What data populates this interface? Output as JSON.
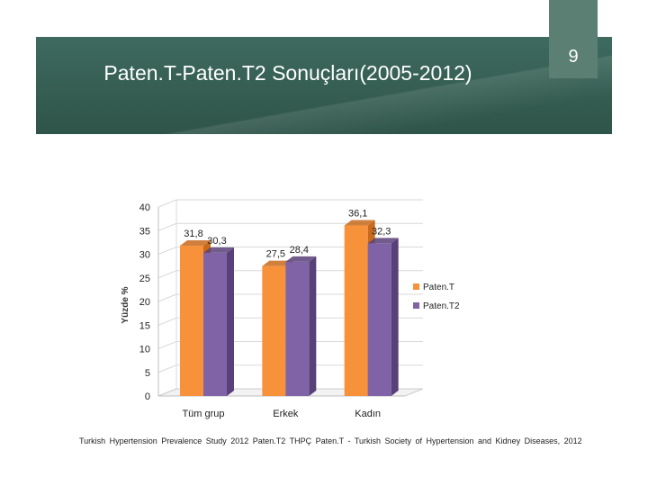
{
  "slide": {
    "title": "Paten.T-Paten.T2 Sonuçları(2005-2012)",
    "page_number": "9",
    "footnote": "Turkish Hypertension Prevalence Study 2012 Paten.T2 THPÇ Paten.T - Turkish Society of Hypertension and Kidney Diseases, 2012"
  },
  "colors": {
    "banner": "#345a4f",
    "page_box": "#5b7f72",
    "series1": "#f7923a",
    "series1_dark": "#c76a1d",
    "series2": "#7f63a6",
    "series2_dark": "#584078"
  },
  "chart_data": {
    "type": "bar",
    "categories": [
      "Tüm grup",
      "Erkek",
      "Kadın"
    ],
    "series": [
      {
        "name": "Paten.T",
        "values": [
          31.8,
          27.5,
          36.1
        ],
        "labels": [
          "31,8",
          "27,5",
          "36,1"
        ]
      },
      {
        "name": "Paten.T2",
        "values": [
          30.3,
          28.4,
          32.3
        ],
        "labels": [
          "30,3",
          "28,4",
          "32,3"
        ]
      }
    ],
    "title": "",
    "xlabel": "",
    "ylabel": "Yüzde %",
    "ylim": [
      0,
      40
    ],
    "yticks": [
      "0",
      "5",
      "10",
      "15",
      "20",
      "25",
      "30",
      "35",
      "40"
    ],
    "style": "3d",
    "legend_position": "right"
  }
}
